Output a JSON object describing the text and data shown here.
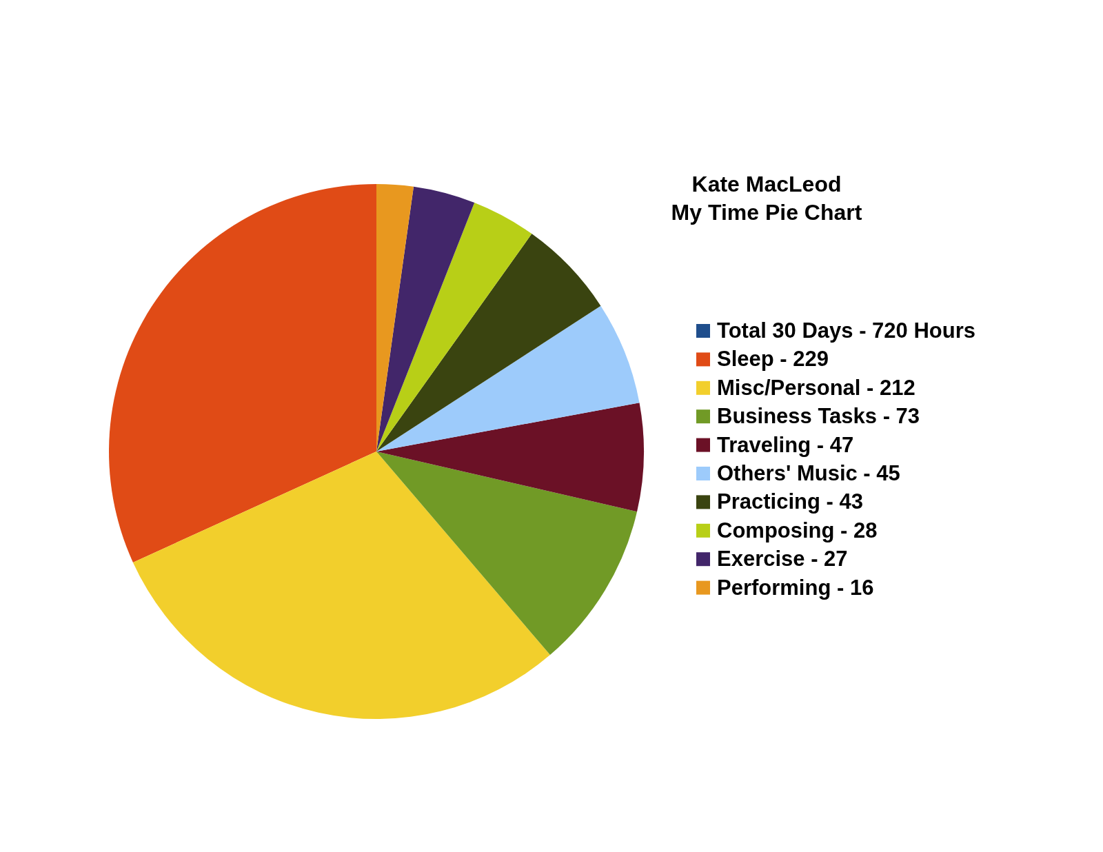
{
  "chart_data": {
    "type": "pie",
    "title": "Kate MacLeod\nMy Time Pie Chart",
    "categories": [
      "Total 30 Days",
      "Sleep",
      "Misc/Personal",
      "Business Tasks",
      "Traveling",
      "Others' Music",
      "Practicing",
      "Composing",
      "Exercise",
      "Performing"
    ],
    "values": [
      null,
      229,
      212,
      73,
      47,
      45,
      43,
      28,
      27,
      16
    ],
    "value_labels": [
      "720 Hours",
      "229",
      "212",
      "73",
      "47",
      "45",
      "43",
      "28",
      "27",
      "16"
    ],
    "colors": [
      "#1f4e8c",
      "#e04b16",
      "#f2cf2c",
      "#719a26",
      "#6b1126",
      "#9dcbfb",
      "#3a4410",
      "#b8cf17",
      "#42266a",
      "#e8981f"
    ],
    "legend": "right"
  }
}
